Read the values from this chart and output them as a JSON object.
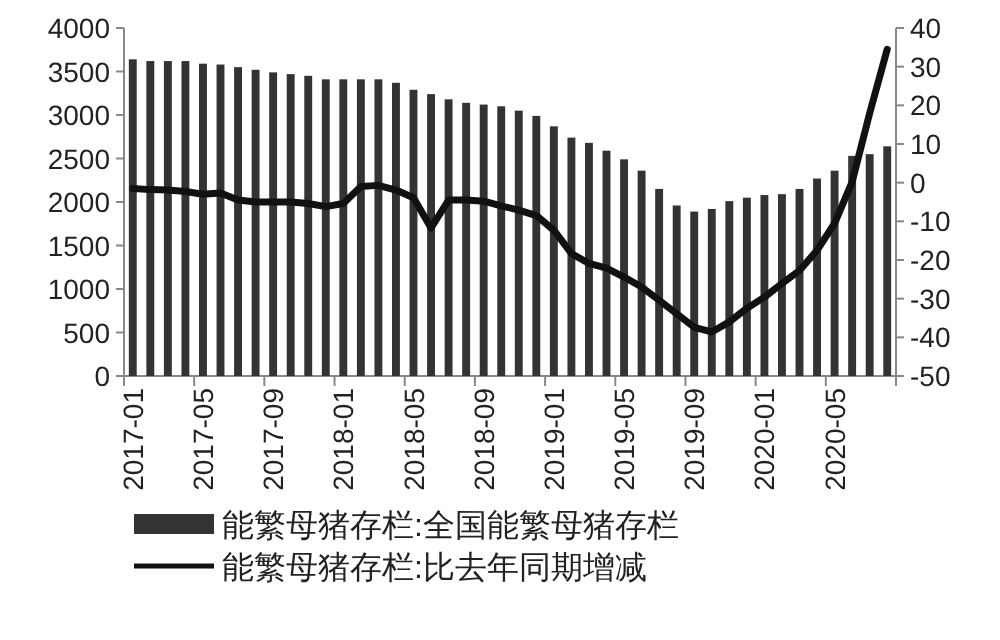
{
  "chart_data": {
    "type": "bar",
    "categories": [
      "2017-01",
      null,
      null,
      null,
      "2017-05",
      null,
      null,
      null,
      "2017-09",
      null,
      null,
      null,
      "2018-01",
      null,
      null,
      null,
      "2018-05",
      null,
      null,
      null,
      "2018-09",
      null,
      null,
      null,
      "2019-01",
      null,
      null,
      null,
      "2019-05",
      null,
      null,
      null,
      "2019-09",
      null,
      null,
      null,
      "2020-01",
      null,
      null,
      null,
      "2020-05",
      null,
      null,
      null
    ],
    "series": [
      {
        "name": "能繁母猪存栏:全国能繁母猪存栏",
        "color": "#333333",
        "values": [
          3640,
          3620,
          3620,
          3620,
          3590,
          3580,
          3550,
          3520,
          3490,
          3470,
          3450,
          3410,
          3410,
          3410,
          3410,
          3370,
          3290,
          3240,
          3180,
          3140,
          3120,
          3100,
          3050,
          2990,
          2870,
          2740,
          2680,
          2590,
          2490,
          2360,
          2150,
          1960,
          1890,
          1920,
          2010,
          2050,
          2080,
          2090,
          2150,
          2270,
          2360,
          2530,
          2550,
          2640
        ]
      },
      {
        "name": "能繁母猪存栏:比去年同期增减",
        "type": "line",
        "axis": "y2",
        "color": "#111111",
        "values": [
          -1.5,
          -1.8,
          -1.9,
          -2.3,
          -3,
          -2.7,
          -4.5,
          -5,
          -5,
          -5,
          -5.4,
          -6.2,
          -5.4,
          -1,
          -0.7,
          -1.9,
          -3.9,
          -11.7,
          -4.5,
          -4.5,
          -4.8,
          -6,
          -7.1,
          -8.5,
          -12.3,
          -18.3,
          -20.9,
          -22.1,
          -24.4,
          -27,
          -30.4,
          -33.9,
          -37.4,
          -38.6,
          -36,
          -32.5,
          -29.6,
          -26.1,
          -22.7,
          -17.5,
          -10.5,
          0.2,
          18,
          34.5
        ]
      }
    ],
    "ylim": [
      0,
      4000
    ],
    "yticks": [
      0,
      500,
      1000,
      1500,
      2000,
      2500,
      3000,
      3500,
      4000
    ],
    "y2lim": [
      -50,
      40
    ],
    "y2ticks": [
      -50,
      -40,
      -30,
      -20,
      -10,
      0,
      10,
      20,
      30,
      40
    ],
    "legend": "bottom"
  }
}
